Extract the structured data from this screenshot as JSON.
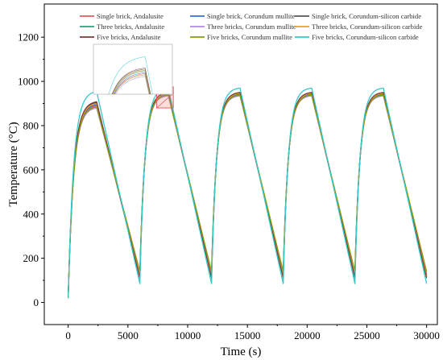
{
  "chart_data": {
    "type": "line",
    "xlabel": "Time (s)",
    "ylabel": "Temperature (°C)",
    "xlim": [
      -2000,
      30900
    ],
    "ylim": [
      -100,
      1350
    ],
    "xticks": [
      0,
      5000,
      10000,
      15000,
      20000,
      25000,
      30000
    ],
    "yticks": [
      0,
      200,
      400,
      600,
      800,
      1000,
      1200
    ],
    "grid": false,
    "legend_position": "top",
    "cycle_period": 6000,
    "heating_duration": 2400,
    "series": [
      {
        "name": "Single brick, Andalusite",
        "color": "#e05a5a",
        "first_peak": 890,
        "peak": 940,
        "trough": 130
      },
      {
        "name": "Single brick, Corundum mullite",
        "color": "#3a6fd8",
        "first_peak": 895,
        "peak": 942,
        "trough": 125
      },
      {
        "name": "Single brick, Corundum-silicon carbide",
        "color": "#555555",
        "first_peak": 905,
        "peak": 948,
        "trough": 120
      },
      {
        "name": "Three bricks, Andalusite",
        "color": "#2ea07a",
        "first_peak": 900,
        "peak": 945,
        "trough": 115
      },
      {
        "name": "Three bricks, Corundum mullite",
        "color": "#b28ae6",
        "first_peak": 880,
        "peak": 935,
        "trough": 135
      },
      {
        "name": "Three bricks, Corundum-silicon carbide",
        "color": "#f0a020",
        "first_peak": 900,
        "peak": 946,
        "trough": 118
      },
      {
        "name": "Five bricks, Andalusite",
        "color": "#7a3a3a",
        "first_peak": 908,
        "peak": 950,
        "trough": 110
      },
      {
        "name": "Five bricks, Corundum mullite",
        "color": "#8a9a10",
        "first_peak": 885,
        "peak": 938,
        "trough": 140
      },
      {
        "name": "Five bricks, Corundum-silicon carbide",
        "color": "#35c8c8",
        "first_peak": 955,
        "peak": 970,
        "trough": 85
      }
    ]
  }
}
